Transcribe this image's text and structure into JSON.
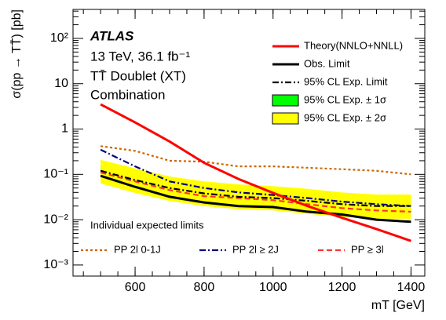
{
  "chart_data": {
    "type": "line",
    "title": "ATLAS",
    "annotations": [
      "13 TeV, 36.1 fb⁻¹",
      "TT̄ Doublet (XT)",
      "Combination"
    ],
    "x_label": "mT [GeV]",
    "y_label": "σ(pp → TT̄) [pb]",
    "log_y": true,
    "xlim": [
      420,
      1440
    ],
    "ylim": [
      0.00057,
      436
    ],
    "xticks": [
      600,
      800,
      1000,
      1200,
      1400
    ],
    "yticks": [
      {
        "value": 0.001,
        "label": "10⁻³"
      },
      {
        "value": 0.01,
        "label": "10⁻²"
      },
      {
        "value": 0.1,
        "label": "10⁻¹"
      },
      1,
      10,
      {
        "value": 100,
        "label": "10²"
      }
    ],
    "x": [
      500,
      600,
      700,
      800,
      900,
      1000,
      1100,
      1200,
      1300,
      1400
    ],
    "legend_title": "Individual expected limits",
    "series": [
      {
        "name": "Theory(NNLO+NNLL)",
        "color": "#ff0000",
        "linestyle": "solid",
        "values": [
          3.5,
          1.4,
          0.53,
          0.18,
          0.079,
          0.039,
          0.02,
          0.011,
          0.0062,
          0.0034
        ]
      },
      {
        "name": "Obs. Limit",
        "color": "#000000",
        "linestyle": "solid",
        "values": [
          0.093,
          0.053,
          0.032,
          0.024,
          0.02,
          0.019,
          0.015,
          0.013,
          0.01,
          0.009
        ]
      },
      {
        "name": "95% CL Exp. Limit",
        "color": "#000000",
        "linestyle": "dashdot",
        "values": [
          0.12,
          0.075,
          0.05,
          0.038,
          0.032,
          0.03,
          0.026,
          0.022,
          0.02,
          0.02
        ]
      },
      {
        "name": "95% CL Exp. ± 1σ",
        "color": "#00ff00",
        "linestyle": "band",
        "low": [
          0.087,
          0.054,
          0.036,
          0.027,
          0.023,
          0.022,
          0.019,
          0.016,
          0.0145,
          0.0145
        ],
        "high": [
          0.16,
          0.1,
          0.068,
          0.052,
          0.044,
          0.041,
          0.036,
          0.03,
          0.027,
          0.027
        ]
      },
      {
        "name": "95% CL Exp. ± 2σ",
        "color": "#ffff00",
        "linestyle": "band",
        "low": [
          0.063,
          0.039,
          0.026,
          0.02,
          0.017,
          0.016,
          0.0135,
          0.0115,
          0.0105,
          0.0105
        ],
        "high": [
          0.21,
          0.135,
          0.09,
          0.07,
          0.06,
          0.055,
          0.048,
          0.04,
          0.036,
          0.036
        ]
      },
      {
        "name": "PP 2l 0-1J",
        "color": "#cc6600",
        "linestyle": "dotted",
        "values": [
          0.42,
          0.33,
          0.2,
          0.19,
          0.15,
          0.15,
          0.14,
          0.13,
          0.12,
          0.1
        ]
      },
      {
        "name": "PP 2l ≥ 2J",
        "color": "#000080",
        "linestyle": "dashdot",
        "values": [
          0.35,
          0.15,
          0.07,
          0.05,
          0.04,
          0.035,
          0.03,
          0.025,
          0.022,
          0.02
        ]
      },
      {
        "name": "PP ≥ 3l",
        "color": "#ff3333",
        "linestyle": "dashed",
        "values": [
          0.11,
          0.07,
          0.045,
          0.033,
          0.03,
          0.027,
          0.022,
          0.018,
          0.016,
          0.015
        ]
      }
    ]
  }
}
